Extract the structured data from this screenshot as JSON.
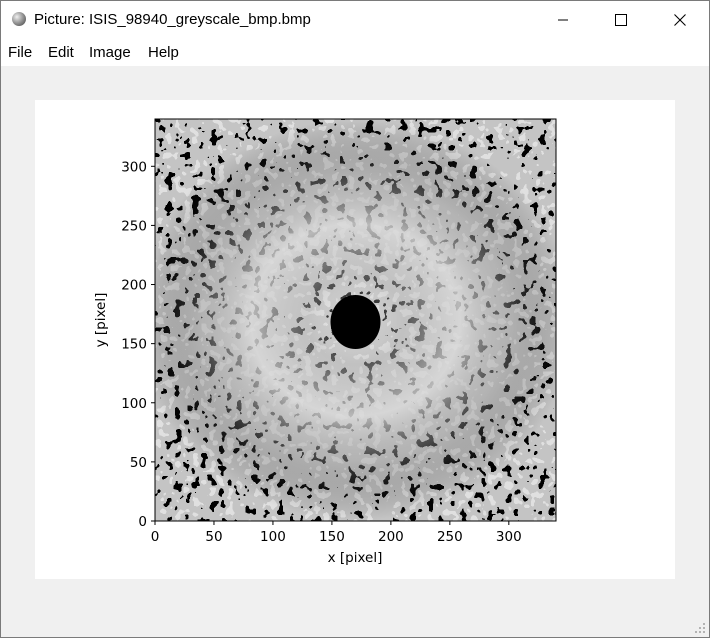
{
  "window": {
    "title": "Picture: ISIS_98940_greyscale_bmp.bmp",
    "controls": {
      "minimize": "minimize-icon",
      "maximize": "maximize-icon",
      "close": "close-icon"
    }
  },
  "menu": {
    "items": [
      "File",
      "Edit",
      "Image",
      "Help"
    ]
  },
  "chart_data": {
    "type": "heatmap",
    "colormap": "greyscale",
    "xlabel": "x [pixel]",
    "ylabel": "y [pixel]",
    "xlim": [
      0,
      340
    ],
    "ylim": [
      0,
      340
    ],
    "x_ticks": [
      0,
      50,
      100,
      150,
      200,
      250,
      300
    ],
    "y_ticks": [
      0,
      50,
      100,
      150,
      200,
      250,
      300
    ],
    "features": {
      "center_dark_spot": [
        170,
        170
      ],
      "ring_radius": 100
    },
    "grid": false,
    "legend": "none"
  },
  "colors": {
    "window_bg": "#f0f0f0",
    "titlebar_bg": "#ffffff",
    "plot_bg": "#ffffff",
    "image_dark": "#000000",
    "image_light": "#e8e8e8"
  }
}
